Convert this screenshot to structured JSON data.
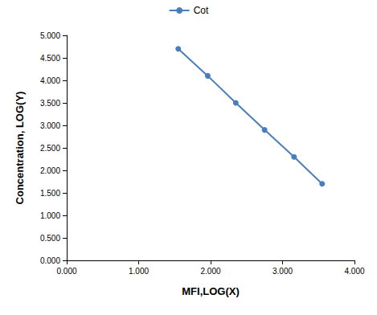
{
  "chart_data": {
    "type": "line",
    "x_label": "MFI,LOG(X)",
    "y_label": "Concentration, LOG(Y)",
    "legend": "top",
    "grid": false,
    "marker": "circle",
    "series": [
      {
        "name": "Cot",
        "color": "#4a7ebb",
        "x": [
          1.55,
          1.96,
          2.35,
          2.75,
          3.16,
          3.55
        ],
        "values": [
          4.7,
          4.1,
          3.5,
          2.9,
          2.3,
          1.7
        ]
      }
    ],
    "xlim": [
      0,
      4
    ],
    "xticks": [
      {
        "value": 0,
        "label": "0.000"
      },
      {
        "value": 1,
        "label": "1.000"
      },
      {
        "value": 2,
        "label": "2.000"
      },
      {
        "value": 3,
        "label": "3.000"
      },
      {
        "value": 4,
        "label": "4.000"
      }
    ],
    "ylim": [
      0,
      5
    ],
    "yticks": [
      {
        "value": 0,
        "label": "0.000"
      },
      {
        "value": 0.5,
        "label": "0.500"
      },
      {
        "value": 1,
        "label": "1.000"
      },
      {
        "value": 1.5,
        "label": "1.500"
      },
      {
        "value": 2,
        "label": "2.000"
      },
      {
        "value": 2.5,
        "label": "2.500"
      },
      {
        "value": 3,
        "label": "3.000"
      },
      {
        "value": 3.5,
        "label": "3.500"
      },
      {
        "value": 4,
        "label": "4.000"
      },
      {
        "value": 4.5,
        "label": "4.500"
      },
      {
        "value": 5,
        "label": "5.000"
      }
    ]
  }
}
